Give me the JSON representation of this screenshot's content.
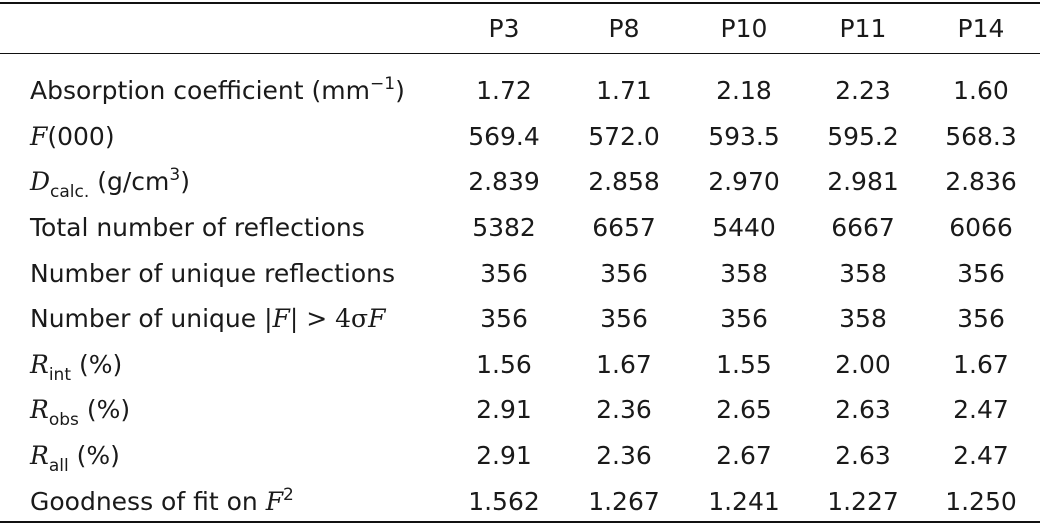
{
  "table": {
    "columns": [
      "P3",
      "P8",
      "P10",
      "P11",
      "P14"
    ],
    "rows": [
      {
        "label": {
          "main": "Absorption coefficient (mm",
          "sup": "−1",
          "tail": ")"
        },
        "values": [
          "1.72",
          "1.71",
          "2.18",
          "2.23",
          "1.60"
        ]
      },
      {
        "label": {
          "italic": "F",
          "tail": "(000)"
        },
        "values": [
          "569.4",
          "572.0",
          "593.5",
          "595.2",
          "568.3"
        ]
      },
      {
        "label": {
          "italic": "D",
          "sub": "calc.",
          "mid": " (g/cm",
          "sup": "3",
          "tail": ")"
        },
        "values": [
          "2.839",
          "2.858",
          "2.970",
          "2.981",
          "2.836"
        ]
      },
      {
        "label": {
          "main": "Total number of reflections"
        },
        "values": [
          "5382",
          "6657",
          "5440",
          "6667",
          "6066"
        ]
      },
      {
        "label": {
          "main": "Number of unique reflections"
        },
        "values": [
          "356",
          "356",
          "358",
          "358",
          "356"
        ]
      },
      {
        "label": {
          "main": "Number of unique |",
          "italic": "F",
          "mid": "| > 4σ",
          "italic2": "F"
        },
        "values": [
          "356",
          "356",
          "356",
          "358",
          "356"
        ]
      },
      {
        "label": {
          "italic": "R",
          "sub": "int",
          "tail": " (%)"
        },
        "values": [
          "1.56",
          "1.67",
          "1.55",
          "2.00",
          "1.67"
        ]
      },
      {
        "label": {
          "italic": "R",
          "sub": "obs",
          "tail": " (%)"
        },
        "values": [
          "2.91",
          "2.36",
          "2.65",
          "2.63",
          "2.47"
        ]
      },
      {
        "label": {
          "italic": "R",
          "sub": "all",
          "tail": " (%)"
        },
        "values": [
          "2.91",
          "2.36",
          "2.67",
          "2.63",
          "2.47"
        ]
      },
      {
        "label": {
          "main": "Goodness of fit on ",
          "italic": "F",
          "sup": "2"
        },
        "values": [
          "1.562",
          "1.267",
          "1.241",
          "1.227",
          "1.250"
        ]
      }
    ]
  }
}
